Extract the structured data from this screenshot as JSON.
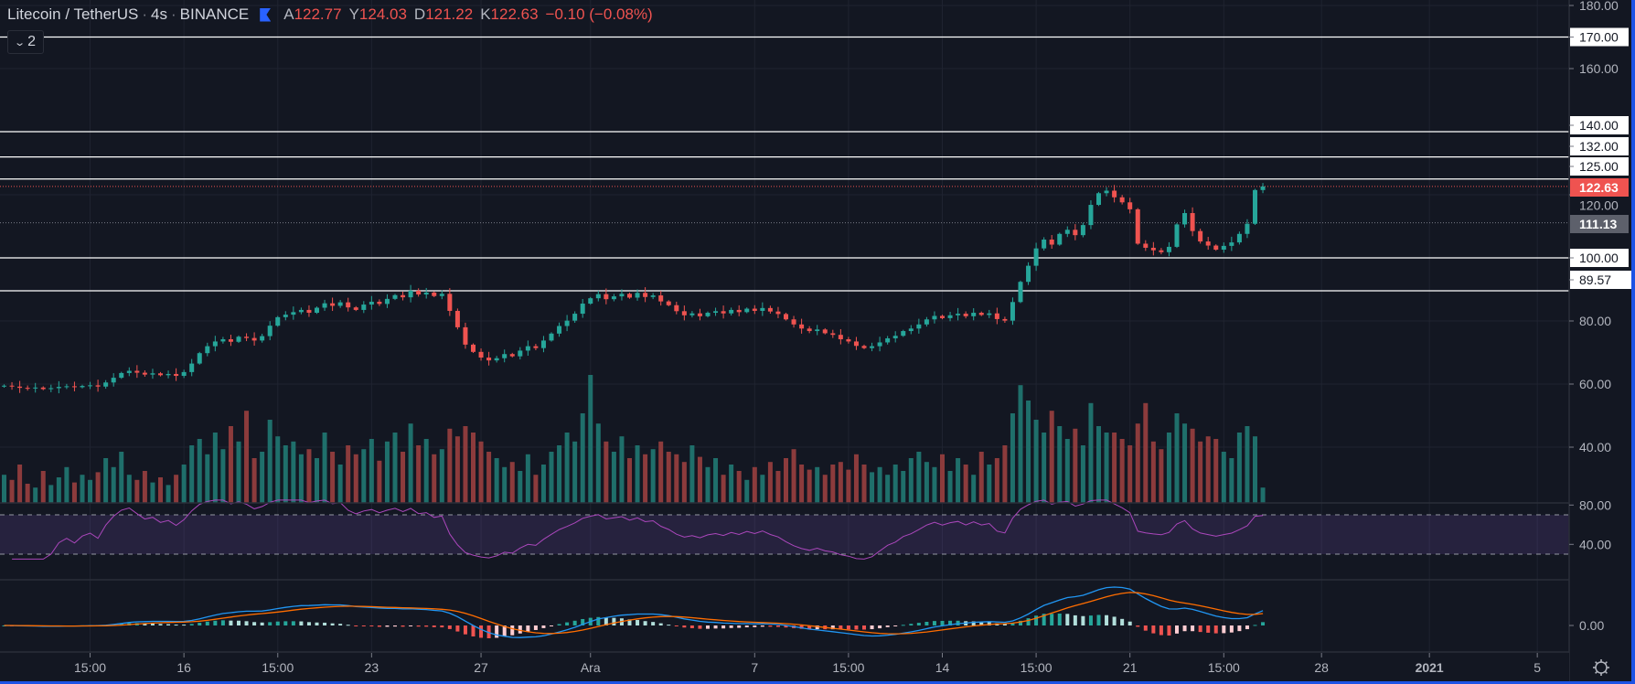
{
  "header": {
    "symbol": "Litecoin / TetherUS",
    "interval": "4s",
    "exchange": "BINANCE",
    "open_label": "A",
    "open": "122.77",
    "high_label": "Y",
    "high": "124.03",
    "low_label": "D",
    "low": "121.22",
    "close_label": "K",
    "close": "122.63",
    "change": "−0.10 (−0.08%)"
  },
  "indicator_toggle": {
    "count": "2",
    "icon": "chevron-down-icon"
  },
  "settings": {
    "icon": "gear-icon"
  },
  "chart_data": {
    "type": "candlestick",
    "title": "Litecoin / TetherUS · 4s · BINANCE",
    "colors": {
      "up": "#26a69a",
      "down": "#ef5350",
      "rsi": "#ab47bc",
      "macd": "#2196f3",
      "signal": "#ff6d00",
      "accent": "#2962ff"
    },
    "price_ticks": [
      {
        "value": 180,
        "label": "180.00"
      },
      {
        "value": 160,
        "label": "160.00"
      },
      {
        "value": 120,
        "label": "120.00"
      },
      {
        "value": 80,
        "label": "80.00"
      },
      {
        "value": 60,
        "label": "60.00"
      },
      {
        "value": 40,
        "label": "40.00"
      }
    ],
    "horizontal_lines": [
      {
        "value": 170,
        "label": "170.00"
      },
      {
        "value": 140,
        "label": "140.00"
      },
      {
        "value": 132,
        "label": "132.00"
      },
      {
        "value": 125,
        "label": "125.00"
      },
      {
        "value": 100,
        "label": "100.00"
      },
      {
        "value": 89.57,
        "label": "89.57"
      }
    ],
    "current_price": {
      "value": 122.63,
      "label": "122.63"
    },
    "reference_price": {
      "value": 111.13,
      "label": "111.13"
    },
    "time_axis": [
      {
        "index": 11,
        "label": "15:00"
      },
      {
        "index": 23,
        "label": "16"
      },
      {
        "index": 35,
        "label": "15:00"
      },
      {
        "index": 47,
        "label": "23"
      },
      {
        "index": 61,
        "label": "27"
      },
      {
        "index": 75,
        "label": "Ara"
      },
      {
        "index": 96,
        "label": "7"
      },
      {
        "index": 108,
        "label": "15:00"
      },
      {
        "index": 120,
        "label": "14"
      },
      {
        "index": 132,
        "label": "15:00"
      },
      {
        "index": 144,
        "label": "21"
      },
      {
        "index": 156,
        "label": "15:00"
      },
      {
        "index": 168.5,
        "label": "28"
      },
      {
        "index": 182.3,
        "label": "2021"
      },
      {
        "index": 196.1,
        "label": "5"
      }
    ],
    "closes": [
      59.5,
      59.2,
      58.8,
      58.6,
      58.9,
      58.4,
      58.7,
      59.1,
      59.3,
      59.0,
      59.4,
      59.6,
      59.2,
      60.5,
      62.0,
      63.5,
      64.2,
      63.6,
      63.0,
      63.4,
      62.8,
      63.2,
      62.6,
      63.8,
      66.5,
      69.8,
      72.0,
      73.5,
      74.2,
      73.4,
      75.0,
      74.6,
      73.8,
      75.2,
      78.5,
      81.2,
      82.0,
      82.8,
      83.5,
      82.6,
      84.2,
      85.6,
      84.8,
      85.9,
      84.3,
      83.5,
      85.2,
      86.1,
      85.4,
      87.0,
      88.2,
      87.5,
      89.6,
      88.4,
      89.0,
      87.9,
      88.6,
      83.2,
      78.0,
      72.5,
      70.2,
      68.4,
      67.5,
      68.2,
      69.5,
      68.8,
      70.6,
      72.0,
      71.4,
      73.8,
      76.0,
      78.4,
      80.1,
      82.3,
      85.5,
      87.2,
      88.5,
      86.9,
      87.8,
      88.6,
      87.4,
      88.9,
      87.6,
      88.1,
      86.2,
      85.0,
      83.1,
      81.8,
      82.4,
      81.5,
      82.6,
      83.1,
      82.4,
      83.5,
      82.8,
      83.9,
      83.2,
      84.1,
      83.0,
      82.2,
      80.5,
      78.9,
      77.6,
      76.8,
      77.3,
      76.1,
      75.6,
      74.2,
      73.5,
      72.1,
      71.4,
      72.0,
      73.2,
      74.5,
      75.3,
      76.8,
      77.6,
      78.9,
      80.5,
      81.6,
      80.9,
      81.8,
      82.3,
      81.5,
      82.6,
      81.9,
      82.4,
      80.6,
      80.1,
      86.0,
      92.4,
      97.5,
      103.0,
      105.8,
      104.2,
      107.6,
      108.9,
      107.2,
      110.4,
      116.8,
      120.5,
      121.3,
      119.2,
      117.6,
      115.4,
      104.5,
      103.2,
      102.4,
      101.8,
      103.5,
      110.6,
      114.2,
      108.5,
      105.2,
      103.9,
      102.6,
      103.8,
      104.9,
      107.6,
      110.8,
      121.5,
      122.63
    ],
    "volumes": [
      22,
      18,
      30,
      15,
      12,
      25,
      14,
      20,
      28,
      16,
      22,
      18,
      24,
      35,
      28,
      40,
      22,
      18,
      25,
      16,
      20,
      14,
      22,
      30,
      45,
      50,
      38,
      55,
      42,
      60,
      48,
      72,
      35,
      40,
      65,
      52,
      45,
      48,
      38,
      42,
      35,
      55,
      40,
      30,
      45,
      38,
      42,
      50,
      33,
      48,
      55,
      40,
      62,
      45,
      50,
      38,
      42,
      58,
      52,
      60,
      55,
      48,
      40,
      35,
      28,
      32,
      25,
      38,
      22,
      30,
      40,
      45,
      55,
      48,
      70,
      100,
      62,
      48,
      40,
      52,
      35,
      45,
      38,
      42,
      48,
      40,
      38,
      32,
      45,
      36,
      28,
      35,
      22,
      30,
      25,
      18,
      28,
      22,
      32,
      25,
      35,
      42,
      30,
      26,
      28,
      22,
      30,
      32,
      26,
      38,
      30,
      24,
      28,
      22,
      30,
      25,
      35,
      40,
      32,
      28,
      38,
      25,
      35,
      30,
      22,
      40,
      30,
      35,
      45,
      70,
      92,
      80,
      65,
      55,
      72,
      60,
      50,
      58,
      45,
      78,
      60,
      55,
      55,
      50,
      45,
      62,
      78,
      48,
      42,
      55,
      70,
      62,
      58,
      48,
      52,
      50,
      40,
      35,
      55,
      60,
      52,
      12
    ],
    "rsi": {
      "period": 14,
      "upper_band": 70,
      "lower_band": 30,
      "ticks": [
        {
          "value": 80,
          "label": "80.00"
        },
        {
          "value": 40,
          "label": "40.00"
        }
      ]
    },
    "macd": {
      "fast": 12,
      "slow": 26,
      "signal": 9,
      "ticks": [
        {
          "value": 0,
          "label": "0.00"
        }
      ]
    }
  }
}
